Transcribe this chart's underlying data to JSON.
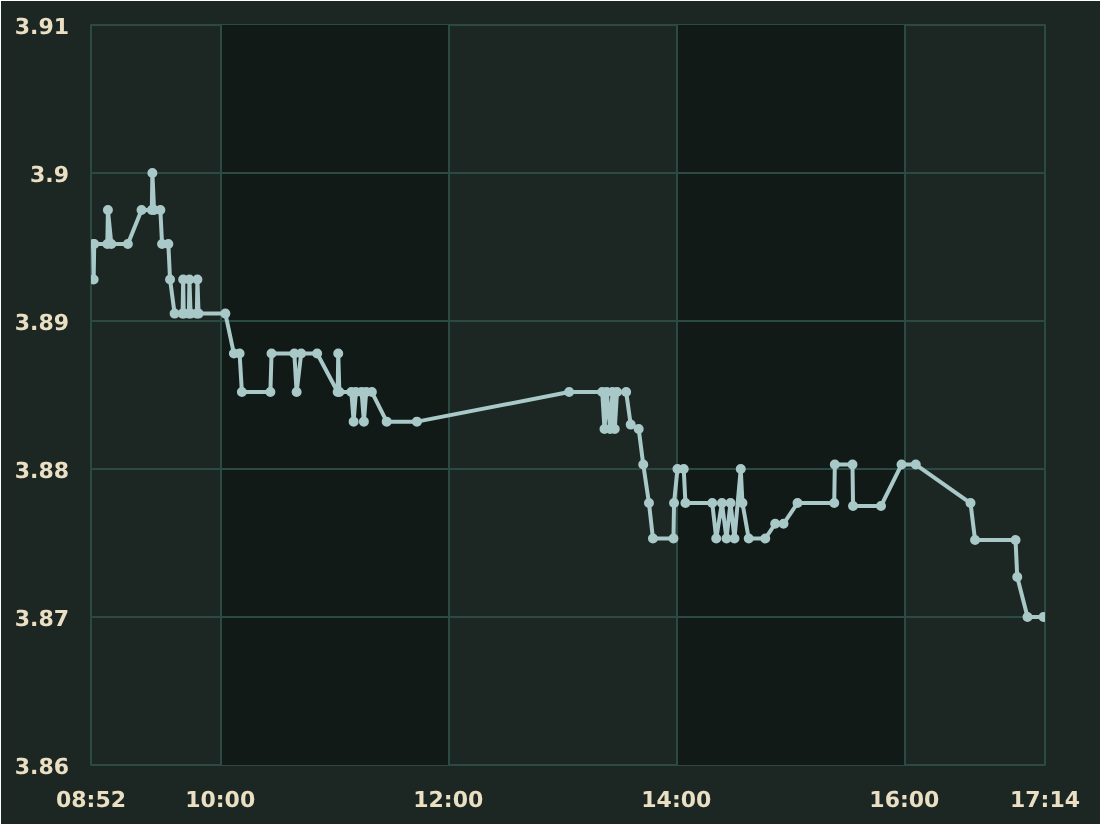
{
  "chart_data": {
    "type": "line",
    "marker": "circle",
    "line_style": "solid",
    "grid": true,
    "xlim": [
      8.8667,
      17.2333
    ],
    "xticks": [
      {
        "value": 8.8667,
        "label": "08:52"
      },
      {
        "value": 10,
        "label": "10:00"
      },
      {
        "value": 12,
        "label": "12:00"
      },
      {
        "value": 14,
        "label": "14:00"
      },
      {
        "value": 16,
        "label": "16:00"
      },
      {
        "value": 17.2333,
        "label": "17:14"
      }
    ],
    "ylim": [
      3.86,
      3.91
    ],
    "yticks": [
      3.86,
      3.87,
      3.88,
      3.89,
      3.9,
      3.91
    ],
    "bands": [
      {
        "axis": "x",
        "from": 10,
        "to": 12,
        "color": "#121a17"
      },
      {
        "axis": "x",
        "from": 14,
        "to": 16,
        "color": "#121a17"
      }
    ],
    "series": [
      {
        "color": "#a9c8c8",
        "x": [
          8.885,
          8.89,
          8.895,
          9.01,
          9.015,
          9.045,
          9.19,
          9.31,
          9.4,
          9.405,
          9.42,
          9.475,
          9.49,
          9.545,
          9.56,
          9.6,
          9.67,
          9.675,
          9.68,
          9.725,
          9.73,
          9.74,
          9.795,
          9.8,
          9.81,
          10.045,
          10.12,
          10.17,
          10.19,
          10.44,
          10.45,
          10.65,
          10.67,
          10.71,
          10.85,
          11.03,
          11.035,
          11.045,
          11.15,
          11.17,
          11.19,
          11.24,
          11.26,
          11.28,
          11.33,
          11.46,
          11.725,
          13.06,
          13.35,
          13.37,
          13.39,
          13.42,
          13.44,
          13.46,
          13.48,
          13.56,
          13.6,
          13.67,
          13.71,
          13.76,
          13.795,
          13.975,
          13.98,
          14.01,
          14.065,
          14.08,
          14.315,
          14.35,
          14.4,
          14.44,
          14.475,
          14.51,
          14.565,
          14.58,
          14.635,
          14.78,
          14.867,
          14.94,
          15.063,
          15.385,
          15.39,
          15.545,
          15.55,
          15.795,
          15.975,
          16.1,
          16.58,
          16.62,
          16.975,
          16.99,
          17.08,
          17.22
        ],
        "values": [
          3.8952,
          3.8928,
          3.8952,
          3.8952,
          3.8975,
          3.8952,
          3.8952,
          3.8975,
          3.8975,
          3.9,
          3.8975,
          3.8975,
          3.8952,
          3.8952,
          3.8928,
          3.8905,
          3.8905,
          3.8928,
          3.8905,
          3.8905,
          3.8928,
          3.8905,
          3.8905,
          3.8928,
          3.8905,
          3.8905,
          3.8878,
          3.8878,
          3.8852,
          3.8852,
          3.8878,
          3.8878,
          3.8852,
          3.8878,
          3.8878,
          3.8852,
          3.8878,
          3.8852,
          3.8852,
          3.8832,
          3.8852,
          3.8852,
          3.8832,
          3.8852,
          3.8852,
          3.8832,
          3.8832,
          3.8852,
          3.8852,
          3.8827,
          3.8852,
          3.8827,
          3.8852,
          3.8827,
          3.8852,
          3.8852,
          3.883,
          3.8827,
          3.8803,
          3.8777,
          3.8753,
          3.8753,
          3.8777,
          3.88,
          3.88,
          3.8777,
          3.8777,
          3.8753,
          3.8777,
          3.8753,
          3.8777,
          3.8753,
          3.88,
          3.8777,
          3.8753,
          3.8753,
          3.8763,
          3.8763,
          3.8777,
          3.8777,
          3.8803,
          3.8803,
          3.8775,
          3.8775,
          3.8803,
          3.8803,
          3.8777,
          3.8752,
          3.8752,
          3.8727,
          3.87,
          3.87
        ]
      }
    ]
  }
}
